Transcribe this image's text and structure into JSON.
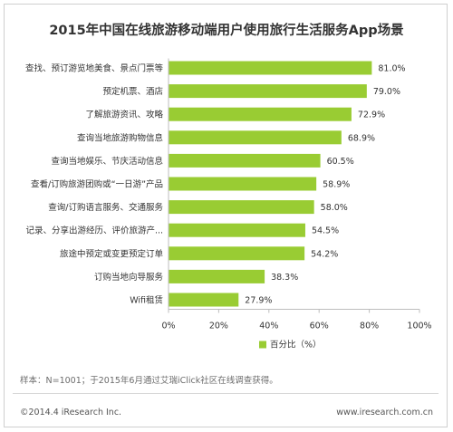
{
  "title": "2015年中国在线旅游移动端用户使用旅行生活服务App场景",
  "footer": {
    "note": "样本：N=1001；于2015年6月通过艾瑞iClick社区在线调查获得。",
    "copyright": "©2014.4 iResearch Inc.",
    "site": "www.iresearch.com.cn"
  },
  "chart_data": {
    "type": "bar",
    "orientation": "horizontal",
    "categories": [
      "查找、预订游览地美食、景点门票等",
      "预定机票、酒店",
      "了解旅游资讯、攻略",
      "查询当地旅游购物信息",
      "查询当地娱乐、节庆活动信息",
      "查看/订购旅游团购或“一日游”产品",
      "查询/订购语言服务、交通服务",
      "记录、分享出游经历、评价旅游产...",
      "旅途中预定或变更预定订单",
      "订购当地向导服务",
      "Wifi租赁"
    ],
    "series": [
      {
        "name": "百分比（%）",
        "values": [
          81.0,
          79.0,
          72.9,
          68.9,
          60.5,
          58.9,
          58.0,
          54.5,
          54.2,
          38.3,
          27.9
        ]
      }
    ],
    "value_labels": [
      "81.0%",
      "79.0%",
      "72.9%",
      "68.9%",
      "60.5%",
      "58.9%",
      "58.0%",
      "54.5%",
      "54.2%",
      "38.3%",
      "27.9%"
    ],
    "xlim": [
      0,
      100
    ],
    "xticks": [
      "0%",
      "20%",
      "40%",
      "60%",
      "80%",
      "100%"
    ],
    "grid": false,
    "legend_position": "bottom",
    "colors": {
      "bar": "#99cc33",
      "axis": "#bdbdbd",
      "text": "#333333"
    }
  }
}
